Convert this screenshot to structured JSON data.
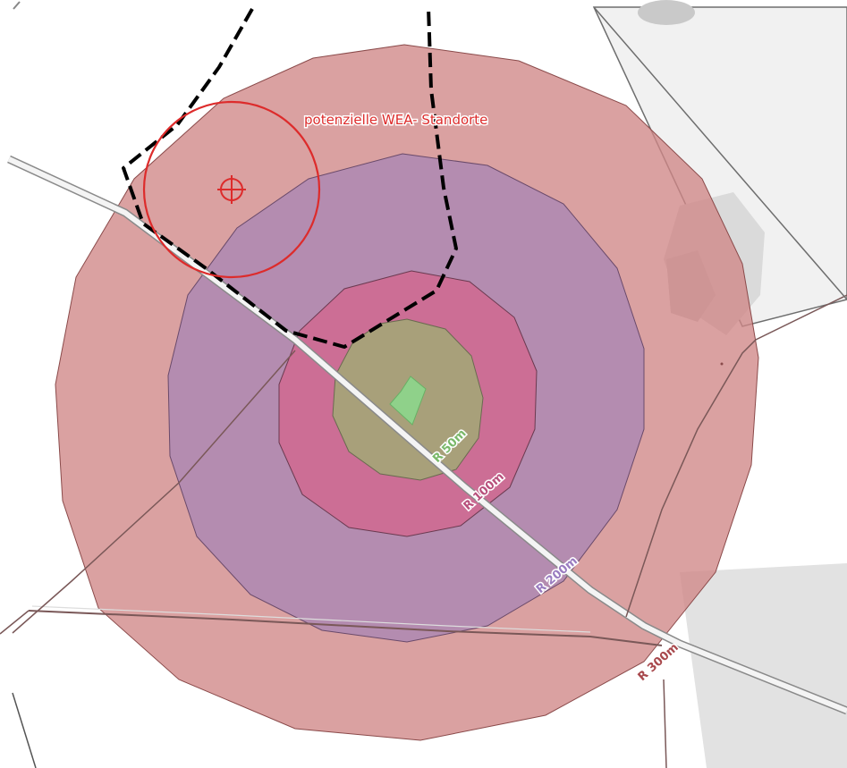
{
  "map": {
    "annotation_label": "potenzielle WEA- Standorte",
    "rings": [
      {
        "id": "r300",
        "label": "R 300m",
        "fill": "#cf8687",
        "label_color": "#a8484c"
      },
      {
        "id": "r200",
        "label": "R 200m",
        "fill": "#b28bb1",
        "label_color": "#9a7cc0"
      },
      {
        "id": "r100",
        "label": "R 100m",
        "fill": "#cc6e95",
        "label_color": "#b8507c"
      },
      {
        "id": "r50",
        "label": "R 50m",
        "fill": "#a8a07a",
        "label_color": "#7ab86a"
      }
    ],
    "colors": {
      "background": "#ffffff",
      "light_gray_area": "#e6e6e6",
      "mid_gray_area": "#d3d3d3",
      "boundary_dash": "#000000",
      "wea_circle": "#dd2b2b",
      "building": "#8fd18a",
      "road_casing": "#8a8a8a",
      "path_line": "#7a5858"
    },
    "icons": {
      "wea_marker": "crosshair-circle-icon",
      "building": "building-icon"
    }
  }
}
